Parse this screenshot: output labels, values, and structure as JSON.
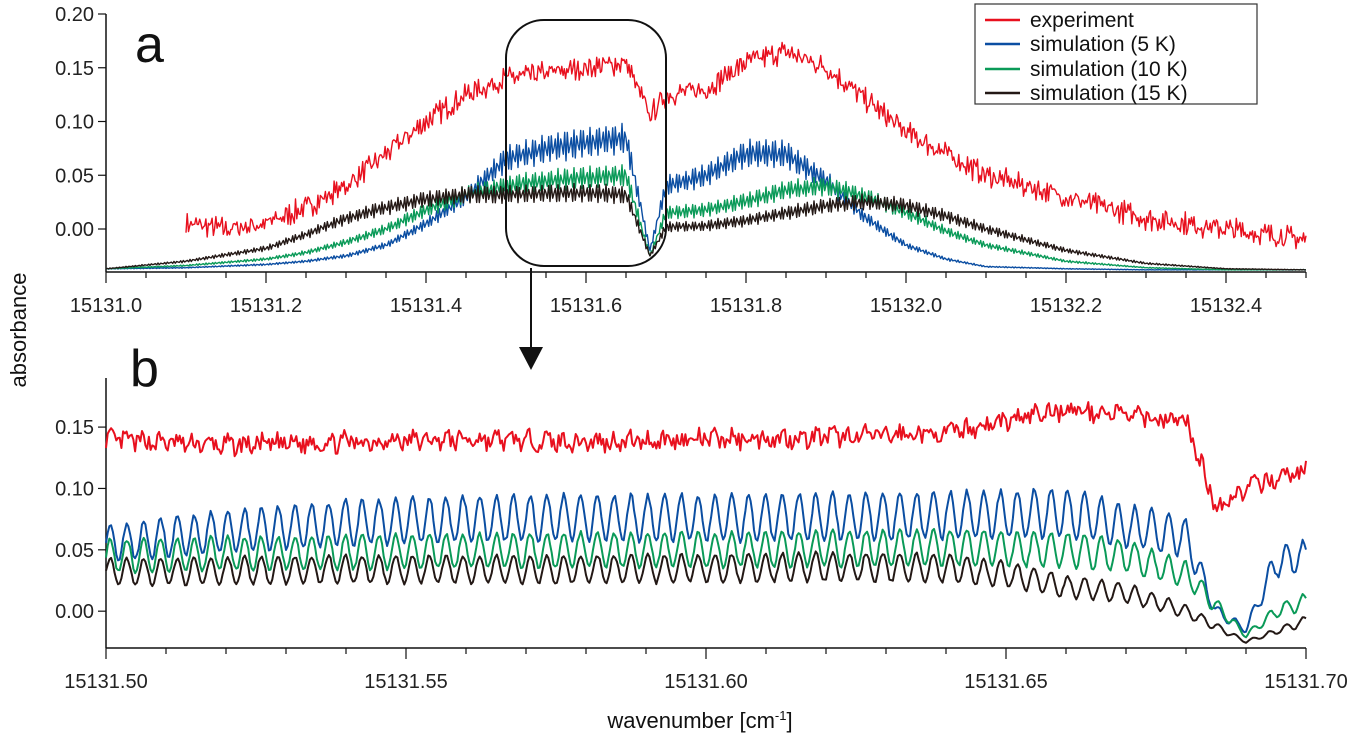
{
  "ylabel": "absorbance",
  "xlabel": "wavenumber [cm",
  "xlabel_sup": "-1",
  "xlabel_close": "]",
  "legend": {
    "entries": [
      {
        "label": "experiment",
        "color": "#e8101e"
      },
      {
        "label": "simulation (5 K)",
        "color": "#0b4ea2"
      },
      {
        "label": "simulation (10 K)",
        "color": "#0a9a58"
      },
      {
        "label": "simulation (15 K)",
        "color": "#231815"
      }
    ]
  },
  "chart_data": [
    {
      "panel": "a",
      "type": "line",
      "xlim": [
        15131.0,
        15132.5
      ],
      "ylim": [
        -0.04,
        0.2
      ],
      "xticks": [
        15131.0,
        15131.2,
        15131.4,
        15131.6,
        15131.8,
        15132.0,
        15132.2,
        15132.4
      ],
      "xtick_labels": [
        "15131.0",
        "15131.2",
        "15131.4",
        "15131.6",
        "15131.8",
        "15132.0",
        "15132.2",
        "15132.4"
      ],
      "yticks": [
        0.0,
        0.05,
        0.1,
        0.15,
        0.2
      ],
      "ytick_labels": [
        "0.00",
        "0.05",
        "0.10",
        "0.15",
        "0.20"
      ],
      "zoom_box_x": [
        15131.5,
        15131.7
      ],
      "series": [
        {
          "name": "experiment",
          "color": "#e8101e",
          "x": [
            15131.1,
            15131.15,
            15131.2,
            15131.25,
            15131.3,
            15131.35,
            15131.4,
            15131.45,
            15131.5,
            15131.55,
            15131.6,
            15131.65,
            15131.68,
            15131.7,
            15131.75,
            15131.8,
            15131.85,
            15131.9,
            15131.95,
            15132.0,
            15132.05,
            15132.1,
            15132.15,
            15132.2,
            15132.25,
            15132.3,
            15132.35,
            15132.4,
            15132.45,
            15132.5
          ],
          "y": [
            0.005,
            0.0,
            0.005,
            0.02,
            0.04,
            0.07,
            0.1,
            0.125,
            0.14,
            0.145,
            0.15,
            0.155,
            0.105,
            0.125,
            0.13,
            0.155,
            0.165,
            0.15,
            0.12,
            0.09,
            0.07,
            0.05,
            0.04,
            0.03,
            0.02,
            0.01,
            0.005,
            0.0,
            -0.005,
            -0.01
          ]
        },
        {
          "name": "simulation (5 K)",
          "color": "#0b4ea2",
          "x": [
            15131.0,
            15131.1,
            15131.2,
            15131.25,
            15131.3,
            15131.35,
            15131.4,
            15131.45,
            15131.5,
            15131.55,
            15131.6,
            15131.65,
            15131.68,
            15131.7,
            15131.75,
            15131.8,
            15131.85,
            15131.9,
            15131.95,
            15132.0,
            15132.05,
            15132.1,
            15132.2,
            15132.3,
            15132.4,
            15132.5
          ],
          "y": [
            -0.037,
            -0.036,
            -0.033,
            -0.03,
            -0.025,
            -0.015,
            0.005,
            0.03,
            0.065,
            0.075,
            0.08,
            0.085,
            -0.02,
            0.04,
            0.05,
            0.07,
            0.07,
            0.045,
            0.01,
            -0.015,
            -0.028,
            -0.035,
            -0.037,
            -0.038,
            -0.038,
            -0.038
          ]
        },
        {
          "name": "simulation (10 K)",
          "color": "#0a9a58",
          "x": [
            15131.0,
            15131.1,
            15131.2,
            15131.25,
            15131.3,
            15131.35,
            15131.4,
            15131.45,
            15131.5,
            15131.55,
            15131.6,
            15131.65,
            15131.68,
            15131.7,
            15131.75,
            15131.8,
            15131.85,
            15131.9,
            15131.95,
            15132.0,
            15132.05,
            15132.1,
            15132.2,
            15132.3,
            15132.4,
            15132.5
          ],
          "y": [
            -0.037,
            -0.034,
            -0.028,
            -0.022,
            -0.012,
            0.0,
            0.018,
            0.032,
            0.04,
            0.045,
            0.048,
            0.05,
            -0.025,
            0.015,
            0.018,
            0.026,
            0.036,
            0.04,
            0.03,
            0.015,
            -0.002,
            -0.015,
            -0.03,
            -0.036,
            -0.038,
            -0.038
          ]
        },
        {
          "name": "simulation (15 K)",
          "color": "#231815",
          "x": [
            15131.0,
            15131.1,
            15131.2,
            15131.25,
            15131.3,
            15131.35,
            15131.4,
            15131.45,
            15131.5,
            15131.55,
            15131.6,
            15131.65,
            15131.68,
            15131.7,
            15131.75,
            15131.8,
            15131.85,
            15131.9,
            15131.95,
            15132.0,
            15132.05,
            15132.1,
            15132.2,
            15132.3,
            15132.4,
            15132.5
          ],
          "y": [
            -0.037,
            -0.03,
            -0.018,
            -0.005,
            0.01,
            0.02,
            0.028,
            0.032,
            0.032,
            0.033,
            0.034,
            0.032,
            -0.025,
            0.002,
            0.003,
            0.008,
            0.015,
            0.022,
            0.025,
            0.022,
            0.012,
            0.0,
            -0.02,
            -0.032,
            -0.037,
            -0.038
          ]
        }
      ]
    },
    {
      "panel": "b",
      "type": "line",
      "xlim": [
        15131.5,
        15131.7
      ],
      "ylim": [
        -0.03,
        0.19
      ],
      "xticks": [
        15131.5,
        15131.55,
        15131.6,
        15131.65,
        15131.7
      ],
      "xtick_labels": [
        "15131.50",
        "15131.55",
        "15131.60",
        "15131.65",
        "15131.70"
      ],
      "yticks": [
        0.0,
        0.05,
        0.1,
        0.15
      ],
      "ytick_labels": [
        "0.00",
        "0.05",
        "0.10",
        "0.15"
      ],
      "series": [
        {
          "name": "experiment",
          "color": "#e8101e",
          "x": [
            15131.5,
            15131.52,
            15131.54,
            15131.56,
            15131.58,
            15131.6,
            15131.62,
            15131.64,
            15131.65,
            15131.66,
            15131.67,
            15131.68,
            15131.685,
            15131.69,
            15131.7
          ],
          "y": [
            0.14,
            0.135,
            0.138,
            0.14,
            0.138,
            0.14,
            0.142,
            0.145,
            0.155,
            0.165,
            0.16,
            0.155,
            0.085,
            0.1,
            0.115
          ]
        },
        {
          "name": "simulation (5 K)",
          "color": "#0b4ea2",
          "x": [
            15131.5,
            15131.52,
            15131.54,
            15131.56,
            15131.58,
            15131.6,
            15131.62,
            15131.64,
            15131.66,
            15131.67,
            15131.68,
            15131.685,
            15131.69,
            15131.695,
            15131.7
          ],
          "y": [
            0.055,
            0.065,
            0.072,
            0.075,
            0.076,
            0.076,
            0.077,
            0.078,
            0.08,
            0.07,
            0.06,
            0.0,
            -0.015,
            0.04,
            0.045
          ]
        },
        {
          "name": "simulation (10 K)",
          "color": "#0a9a58",
          "x": [
            15131.5,
            15131.52,
            15131.54,
            15131.56,
            15131.58,
            15131.6,
            15131.62,
            15131.64,
            15131.66,
            15131.67,
            15131.68,
            15131.685,
            15131.69,
            15131.695,
            15131.7
          ],
          "y": [
            0.045,
            0.047,
            0.048,
            0.049,
            0.05,
            0.05,
            0.051,
            0.052,
            0.05,
            0.045,
            0.03,
            0.005,
            -0.02,
            0.0,
            0.008
          ]
        },
        {
          "name": "simulation (15 K)",
          "color": "#231815",
          "x": [
            15131.5,
            15131.52,
            15131.54,
            15131.56,
            15131.58,
            15131.6,
            15131.62,
            15131.64,
            15131.65,
            15131.66,
            15131.67,
            15131.68,
            15131.69,
            15131.7
          ],
          "y": [
            0.032,
            0.033,
            0.034,
            0.034,
            0.034,
            0.035,
            0.036,
            0.035,
            0.03,
            0.02,
            0.015,
            0.0,
            -0.025,
            -0.008
          ]
        }
      ]
    }
  ]
}
